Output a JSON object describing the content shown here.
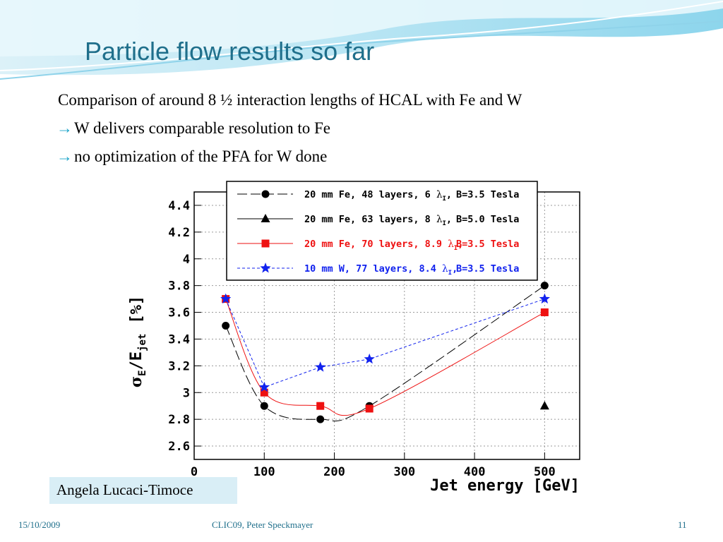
{
  "slide": {
    "title": "Particle flow results so far",
    "bullets": [
      {
        "arrow": "",
        "text": "Comparison of around 8 ½ interaction lengths of HCAL with Fe and W"
      },
      {
        "arrow": "→",
        "text": "W delivers comparable resolution to Fe"
      },
      {
        "arrow": "→",
        "text": "no optimization of the PFA for W done"
      }
    ],
    "author": "Angela Lucaci-Timoce",
    "footer": {
      "date": "15/10/2009",
      "center": "CLIC09, Peter Speckmayer",
      "page": "11"
    },
    "colors": {
      "title": "#1f6f8b",
      "accent": "#1aa3c8",
      "author_box": "#d9eef6"
    }
  },
  "chart_data": {
    "type": "line",
    "xlabel": "Jet energy [GeV]",
    "ylabel_main": "σ",
    "ylabel_sub": "E",
    "ylabel_mid": "/E",
    "ylabel_sub2": "jet",
    "ylabel_unit": "[%]",
    "xlim": [
      0,
      550
    ],
    "ylim": [
      2.5,
      4.5
    ],
    "xticks": [
      0,
      100,
      200,
      300,
      400,
      500
    ],
    "xtick_labels": [
      "0",
      "100",
      "200",
      "300",
      "400",
      "500"
    ],
    "yticks": [
      2.6,
      2.8,
      3,
      3.2,
      3.4,
      3.6,
      3.8,
      4,
      4.2,
      4.4
    ],
    "ytick_labels": [
      "2.6",
      "2.8",
      "3",
      "3.2",
      "3.4",
      "3.6",
      "3.8",
      "4",
      "4.2",
      "4.4"
    ],
    "grid": true,
    "legend_position": "top",
    "series": [
      {
        "name": "20 mm Fe, 48 layers, 6 λI, B=3.5 Tesla",
        "label_parts": [
          "20 mm Fe, 48 layers, 6 ",
          "λ",
          "I",
          ",",
          "B=3.5 Tesla"
        ],
        "color": "#000000",
        "marker": "circle",
        "line": "longdash",
        "label_color": "#000000",
        "x": [
          45,
          100,
          180,
          250,
          500
        ],
        "y": [
          3.5,
          2.9,
          2.8,
          2.9,
          3.8
        ]
      },
      {
        "name": "20 mm Fe, 63 layers, 8 λI, B=5.0 Tesla",
        "label_parts": [
          "20 mm Fe, 63 layers, 8 ",
          "λ",
          "I",
          ",",
          "B=5.0 Tesla"
        ],
        "color": "#000000",
        "marker": "triangle",
        "line": "none",
        "label_color": "#000000",
        "x": [
          500
        ],
        "y": [
          2.9
        ]
      },
      {
        "name": "20 mm Fe, 70 layers, 8.9 λI, B=3.5 Tesla",
        "label_parts": [
          "20 mm Fe, 70 layers, 8.9 ",
          "λ",
          "I",
          ",",
          "B=3.5 Tesla"
        ],
        "color": "#ee1111",
        "marker": "square",
        "line": "solid",
        "label_color": "#ee1111",
        "x": [
          45,
          100,
          180,
          250,
          500
        ],
        "y": [
          3.7,
          3.0,
          2.9,
          2.88,
          3.6
        ]
      },
      {
        "name": "10 mm W, 77 layers, 8.4 λI, B=3.5 Tesla",
        "label_parts": [
          "10 mm W,  77 layers, 8.4 ",
          "λ",
          "I",
          ",",
          "B=3.5 Tesla"
        ],
        "color": "#1122ee",
        "marker": "star",
        "line": "dashed",
        "label_color": "#1122ee",
        "x": [
          45,
          100,
          180,
          250,
          500
        ],
        "y": [
          3.7,
          3.04,
          3.19,
          3.25,
          3.7
        ]
      }
    ]
  }
}
